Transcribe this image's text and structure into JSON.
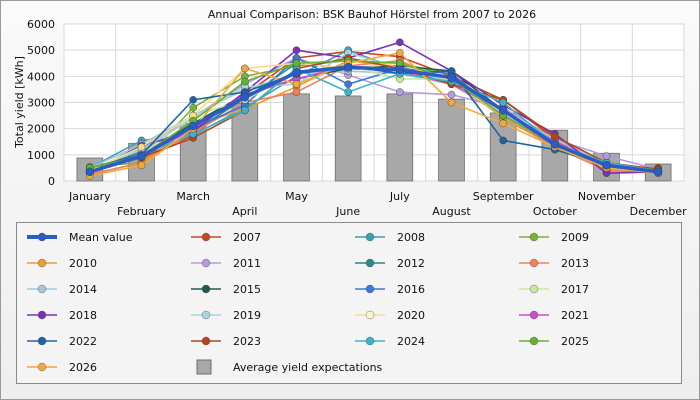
{
  "chart_data": {
    "type": "line",
    "title": "Annual Comparison: BSK Bauhof Hörstel from 2007 to 2026",
    "ylabel": "Total yield [kWh]",
    "xlabel": "",
    "ylim": [
      0,
      6000
    ],
    "yticks": [
      0,
      1000,
      2000,
      3000,
      4000,
      5000,
      6000
    ],
    "grid": true,
    "legend_position": "bottom",
    "categories": [
      "January",
      "February",
      "March",
      "April",
      "May",
      "June",
      "July",
      "August",
      "September",
      "October",
      "November",
      "December"
    ],
    "bars": {
      "name": "Average yield expectations",
      "color": "#a8a8a8",
      "values": [
        880,
        1440,
        2200,
        2960,
        3330,
        3250,
        3330,
        3130,
        2600,
        1940,
        1060,
        650
      ]
    },
    "series": [
      {
        "name": "Mean value",
        "color": "#2a5cc8",
        "values": [
          350,
          950,
          2100,
          3200,
          4150,
          4350,
          4250,
          3950,
          2700,
          1400,
          600,
          350
        ]
      },
      {
        "name": "2007",
        "color": "#c8461e",
        "values": [
          400,
          900,
          1750,
          3300,
          4700,
          4950,
          4750,
          4000,
          3100,
          1600,
          600,
          500
        ]
      },
      {
        "name": "2008",
        "color": "#3ca0b4",
        "values": [
          500,
          1550,
          1750,
          2800,
          4000,
          5000,
          4250,
          3800,
          2700,
          1400,
          500,
          350
        ]
      },
      {
        "name": "2009",
        "color": "#78b43c",
        "values": [
          550,
          700,
          2800,
          4000,
          4400,
          4600,
          4500,
          4050,
          2600,
          1500,
          500,
          400
        ]
      },
      {
        "name": "2010",
        "color": "#e8a030",
        "values": [
          250,
          700,
          2100,
          2750,
          3600,
          4600,
          4350,
          3900,
          2400,
          1300,
          450,
          350
        ]
      },
      {
        "name": "2011",
        "color": "#b49be0",
        "values": [
          350,
          1300,
          2450,
          3700,
          4700,
          4050,
          3400,
          3300,
          2800,
          1600,
          950,
          450
        ]
      },
      {
        "name": "2012",
        "color": "#2a8a8a",
        "values": [
          450,
          1100,
          1900,
          3150,
          4500,
          4300,
          4200,
          4000,
          2500,
          1350,
          550,
          350
        ]
      },
      {
        "name": "2013",
        "color": "#f08060",
        "values": [
          250,
          700,
          1850,
          3000,
          3400,
          4400,
          4600,
          3700,
          2500,
          1300,
          400,
          300
        ]
      },
      {
        "name": "2014",
        "color": "#a0c8dc",
        "values": [
          500,
          1400,
          2500,
          3500,
          4100,
          4200,
          4100,
          3700,
          2600,
          1600,
          650,
          400
        ]
      },
      {
        "name": "2015",
        "color": "#1e5a50",
        "values": [
          400,
          1000,
          2200,
          3300,
          3900,
          4300,
          4400,
          4200,
          2700,
          1500,
          500,
          350
        ]
      },
      {
        "name": "2016",
        "color": "#3c78dc",
        "values": [
          450,
          1000,
          2000,
          2900,
          4700,
          3700,
          4300,
          4100,
          2550,
          1350,
          550,
          350
        ]
      },
      {
        "name": "2017",
        "color": "#c8e8a0",
        "values": [
          400,
          1000,
          2500,
          3100,
          4100,
          4400,
          3900,
          3900,
          2600,
          1450,
          600,
          350
        ]
      },
      {
        "name": "2018",
        "color": "#7a32b4",
        "values": [
          350,
          1350,
          1900,
          3400,
          5000,
          4700,
          5300,
          4200,
          2900,
          1800,
          300,
          350
        ]
      },
      {
        "name": "2019",
        "color": "#a8d4e0",
        "values": [
          450,
          1200,
          2400,
          3600,
          3700,
          4900,
          4300,
          3800,
          2500,
          1400,
          600,
          300
        ]
      },
      {
        "name": "2020",
        "color": "#f4dc8c",
        "values": [
          400,
          1300,
          2500,
          4300,
          4500,
          4300,
          4500,
          3800,
          2500,
          1400,
          650,
          350
        ]
      },
      {
        "name": "2021",
        "color": "#c850c8",
        "values": [
          350,
          900,
          2000,
          3300,
          3900,
          4400,
          4200,
          3700,
          2700,
          1500,
          550,
          300
        ]
      },
      {
        "name": "2022",
        "color": "#1e64a0",
        "values": [
          500,
          1000,
          3100,
          3400,
          4100,
          4400,
          4100,
          4200,
          1550,
          1200,
          600,
          350
        ]
      },
      {
        "name": "2023",
        "color": "#b4461e",
        "values": [
          350,
          900,
          1650,
          2700,
          4300,
          4700,
          4300,
          3700,
          3100,
          1700,
          700,
          450
        ]
      },
      {
        "name": "2024",
        "color": "#3cb4c8",
        "values": [
          350,
          1000,
          1800,
          2700,
          4300,
          3400,
          4100,
          3800,
          3000,
          1400,
          700,
          400
        ]
      },
      {
        "name": "2025",
        "color": "#64b432",
        "values": [
          500,
          950,
          2300,
          3800,
          4500,
          4600,
          4500,
          3900,
          2500,
          1400,
          600,
          400
        ]
      },
      {
        "name": "2026",
        "color": "#f0aa3c",
        "values": [
          200,
          600,
          2000,
          4300,
          3700,
          4500,
          4900,
          3000,
          2200,
          1300,
          500,
          300
        ]
      }
    ]
  }
}
